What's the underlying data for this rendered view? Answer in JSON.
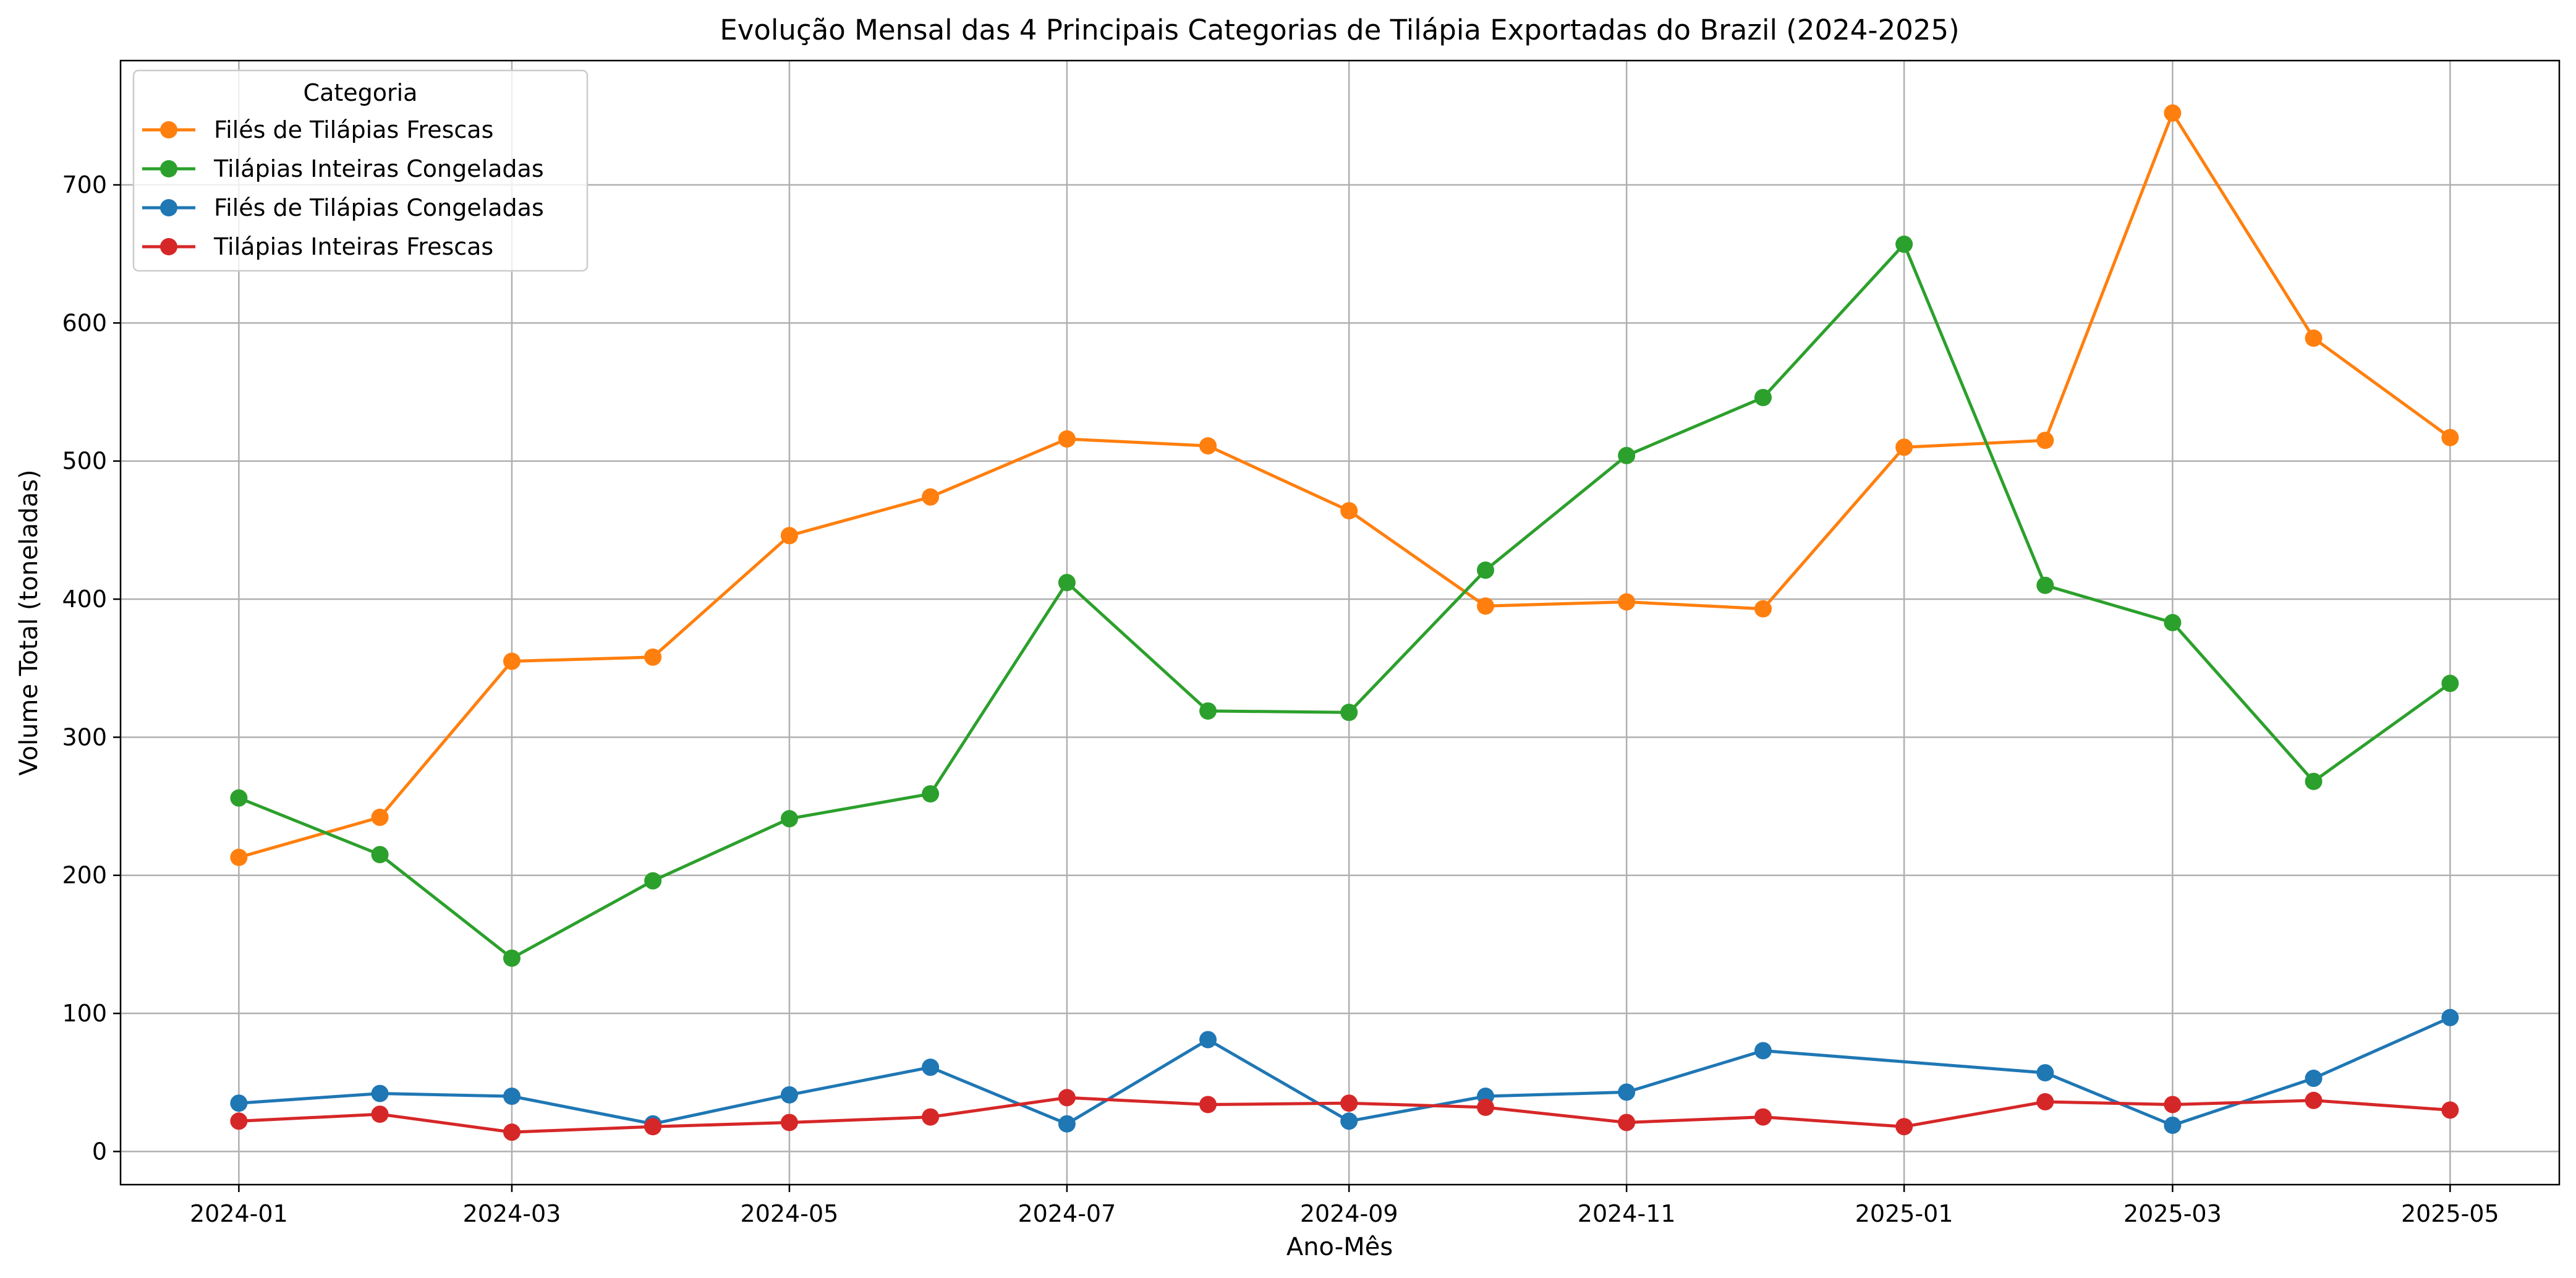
{
  "chart_data": {
    "type": "line",
    "title": "Evolução Mensal das 4 Principais Categorias de Tilápia Exportadas do Brazil (2024-2025)",
    "xlabel": "Ano-Mês",
    "ylabel": "Volume Total (toneladas)",
    "ylim": [
      -24,
      790
    ],
    "yticks": [
      0,
      100,
      200,
      300,
      400,
      500,
      600,
      700
    ],
    "xlim": [
      "2023-12-06",
      "2025-05-25"
    ],
    "xticks": [
      "2024-01",
      "2024-03",
      "2024-05",
      "2024-07",
      "2024-09",
      "2024-11",
      "2025-01",
      "2025-03",
      "2025-05"
    ],
    "grid": true,
    "legend": {
      "title": "Categoria",
      "position": "top-left"
    },
    "series": [
      {
        "name": "Filés de Tilápias Frescas",
        "color": "#ff7f0e",
        "points": [
          [
            "2024-01-01",
            213
          ],
          [
            "2024-02-01",
            242
          ],
          [
            "2024-03-01",
            355
          ],
          [
            "2024-04-01",
            358
          ],
          [
            "2024-05-01",
            446
          ],
          [
            "2024-06-01",
            474
          ],
          [
            "2024-07-01",
            516
          ],
          [
            "2024-08-01",
            511
          ],
          [
            "2024-09-01",
            464
          ],
          [
            "2024-10-01",
            395
          ],
          [
            "2024-11-01",
            398
          ],
          [
            "2024-12-01",
            393
          ],
          [
            "2025-01-01",
            510
          ],
          [
            "2025-02-01",
            515
          ],
          [
            "2025-03-01",
            752
          ],
          [
            "2025-04-01",
            589
          ],
          [
            "2025-05-01",
            517
          ]
        ]
      },
      {
        "name": "Tilápias Inteiras Congeladas",
        "color": "#2ca02c",
        "points": [
          [
            "2024-01-01",
            256
          ],
          [
            "2024-02-01",
            215
          ],
          [
            "2024-03-01",
            140
          ],
          [
            "2024-04-01",
            196
          ],
          [
            "2024-05-01",
            241
          ],
          [
            "2024-06-01",
            259
          ],
          [
            "2024-07-01",
            412
          ],
          [
            "2024-08-01",
            319
          ],
          [
            "2024-09-01",
            318
          ],
          [
            "2024-10-01",
            421
          ],
          [
            "2024-11-01",
            504
          ],
          [
            "2024-12-01",
            546
          ],
          [
            "2025-01-01",
            657
          ],
          [
            "2025-02-01",
            410
          ],
          [
            "2025-03-01",
            383
          ],
          [
            "2025-04-01",
            268
          ],
          [
            "2025-05-01",
            339
          ]
        ]
      },
      {
        "name": "Filés de Tilápias Congeladas",
        "color": "#1f77b4",
        "points": [
          [
            "2024-01-01",
            35
          ],
          [
            "2024-02-01",
            42
          ],
          [
            "2024-03-01",
            40
          ],
          [
            "2024-04-01",
            20
          ],
          [
            "2024-05-01",
            41
          ],
          [
            "2024-06-01",
            61
          ],
          [
            "2024-07-01",
            20
          ],
          [
            "2024-08-01",
            81
          ],
          [
            "2024-09-01",
            22
          ],
          [
            "2024-10-01",
            40
          ],
          [
            "2024-11-01",
            43
          ],
          [
            "2024-12-01",
            73
          ],
          [
            "2025-02-01",
            57
          ],
          [
            "2025-03-01",
            19
          ],
          [
            "2025-04-01",
            53
          ],
          [
            "2025-05-01",
            97
          ]
        ]
      },
      {
        "name": "Tilápias Inteiras Frescas",
        "color": "#d62728",
        "points": [
          [
            "2024-01-01",
            22
          ],
          [
            "2024-02-01",
            27
          ],
          [
            "2024-03-01",
            14
          ],
          [
            "2024-04-01",
            18
          ],
          [
            "2024-05-01",
            21
          ],
          [
            "2024-06-01",
            25
          ],
          [
            "2024-07-01",
            39
          ],
          [
            "2024-08-01",
            34
          ],
          [
            "2024-09-01",
            35
          ],
          [
            "2024-10-01",
            32
          ],
          [
            "2024-11-01",
            21
          ],
          [
            "2024-12-01",
            25
          ],
          [
            "2025-01-01",
            18
          ],
          [
            "2025-02-01",
            36
          ],
          [
            "2025-03-01",
            34
          ],
          [
            "2025-04-01",
            37
          ],
          [
            "2025-05-01",
            30
          ]
        ]
      }
    ]
  }
}
